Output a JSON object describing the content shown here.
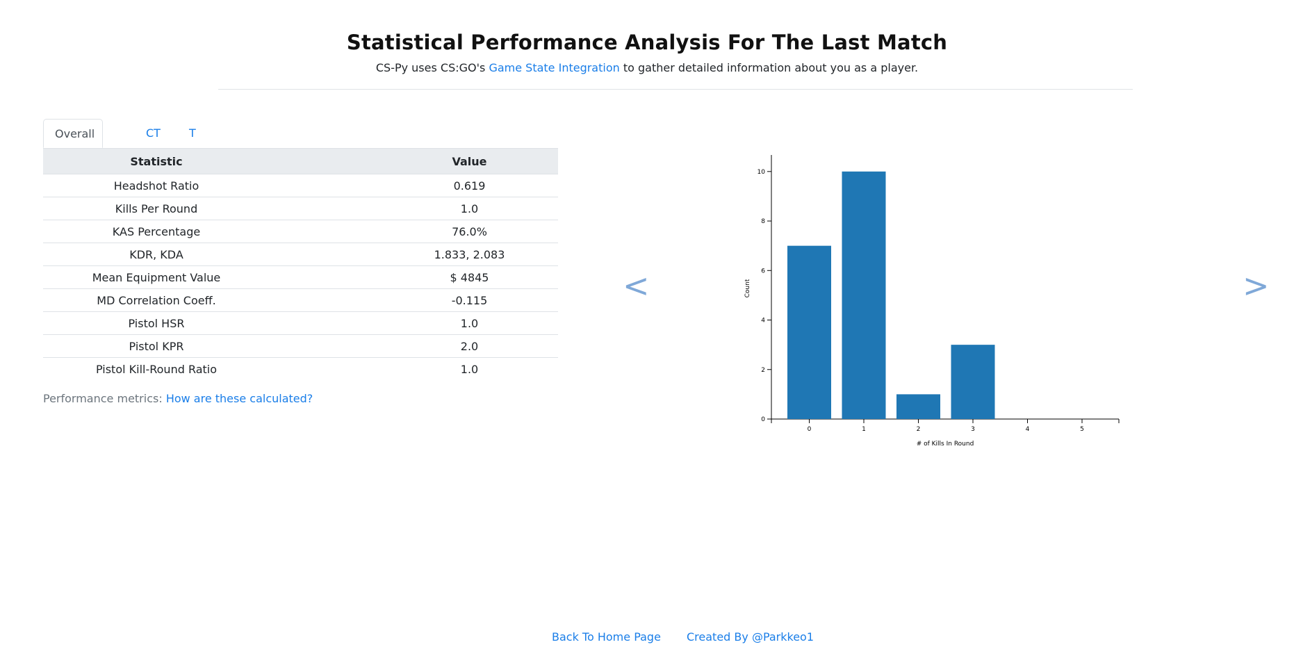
{
  "header": {
    "title": "Statistical Performance Analysis For The Last Match",
    "subtitle_pre": "CS-Py uses CS:GO's ",
    "subtitle_link": "Game State Integration",
    "subtitle_post": " to gather detailed information about you as a player."
  },
  "tabs": [
    {
      "label": "Overall",
      "active": true
    },
    {
      "label": "CT",
      "active": false
    },
    {
      "label": "T",
      "active": false
    }
  ],
  "table": {
    "headers": [
      "Statistic",
      "Value"
    ],
    "rows": [
      {
        "stat": "Headshot Ratio",
        "value": "0.619"
      },
      {
        "stat": "Kills Per Round",
        "value": "1.0"
      },
      {
        "stat": "KAS Percentage",
        "value": "76.0%"
      },
      {
        "stat": "KDR, KDA",
        "value": "1.833, 2.083"
      },
      {
        "stat": "Mean Equipment Value",
        "value": "$ 4845"
      },
      {
        "stat": "MD Correlation Coeff.",
        "value": "-0.115"
      },
      {
        "stat": "Pistol HSR",
        "value": "1.0"
      },
      {
        "stat": "Pistol KPR",
        "value": "2.0"
      },
      {
        "stat": "Pistol Kill-Round Ratio",
        "value": "1.0"
      }
    ]
  },
  "metrics": {
    "label": "Performance metrics: ",
    "link": "How are these calculated?"
  },
  "carousel": {
    "prev_label": "<",
    "next_label": ">"
  },
  "chart_data": {
    "type": "bar",
    "categories": [
      "0",
      "1",
      "2",
      "3",
      "4",
      "5"
    ],
    "values": [
      7,
      10,
      1,
      3,
      0,
      0
    ],
    "title": "",
    "xlabel": "# of Kills In Round",
    "ylabel": "Count",
    "ylim": [
      0,
      10.5
    ],
    "yticks": [
      0,
      2,
      4,
      6,
      8,
      10
    ],
    "bar_color": "#1f77b4",
    "grid": false
  },
  "footer": {
    "home": "Back To Home Page",
    "credit": "Created By @Parkkeo1"
  }
}
